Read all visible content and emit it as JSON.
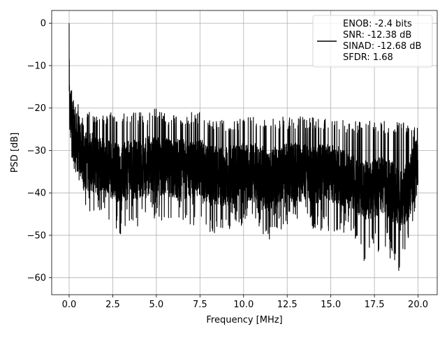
{
  "chart_data": {
    "type": "line",
    "title": "",
    "xlabel": "Frequency [MHz]",
    "ylabel": "PSD [dB]",
    "xlim": [
      -1,
      21.1
    ],
    "ylim": [
      -64,
      3
    ],
    "xticks": [
      0.0,
      2.5,
      5.0,
      7.5,
      10.0,
      12.5,
      15.0,
      17.5,
      20.0
    ],
    "xtick_labels": [
      "0.0",
      "2.5",
      "5.0",
      "7.5",
      "10.0",
      "12.5",
      "15.0",
      "17.5",
      "20.0"
    ],
    "yticks": [
      0,
      -10,
      -20,
      -30,
      -40,
      -50,
      -60
    ],
    "ytick_labels": [
      "0",
      "−10",
      "−20",
      "−30",
      "−40",
      "−50",
      "−60"
    ],
    "grid": true,
    "legend_position": "top-right",
    "legend_lines": [
      "ENOB: -2.4 bits",
      "SNR: -12.38 dB",
      "SINAD: -12.68 dB",
      "SFDR: 1.68"
    ],
    "series": [
      {
        "color": "#000000",
        "description": "dense noise-like PSD trace, peak at 0 dB near DC, mostly between -20 and -40 dB",
        "x": [
          0.0,
          0.02,
          0.05,
          0.1,
          0.15,
          0.2,
          0.3,
          0.5,
          0.7,
          1.0,
          1.5,
          2.0,
          2.5,
          3.0,
          3.5,
          4.0,
          4.5,
          5.0,
          5.5,
          6.0,
          6.5,
          7.0,
          7.5,
          8.0,
          9.0,
          10.0,
          11.0,
          11.4,
          12.0,
          13.0,
          14.0,
          15.0,
          16.0,
          16.9,
          17.5,
          18.0,
          18.5,
          19.0,
          19.5,
          20.0
        ],
        "y": [
          0,
          -10,
          -12,
          -14,
          -16,
          -17,
          -18,
          -19,
          -20,
          -21,
          -21,
          -21,
          -21,
          -21,
          -21,
          -21,
          -21,
          -20,
          -21,
          -21,
          -21,
          -21,
          -21,
          -22,
          -23,
          -22,
          -22,
          -22,
          -22,
          -22,
          -22,
          -22,
          -23,
          -23,
          -23,
          -23,
          -23,
          -23,
          -24,
          -24
        ],
        "min_y": [
          -22,
          -30,
          -31,
          -32,
          -33,
          -35,
          -37,
          -38,
          -40,
          -44,
          -45,
          -44,
          -48,
          -50,
          -48,
          -48,
          -46,
          -48,
          -47,
          -48,
          -47,
          -48,
          -47,
          -50,
          -49,
          -48,
          -49,
          -53,
          -49,
          -48,
          -49,
          -49,
          -50,
          -56,
          -55,
          -53,
          -56,
          -61,
          -54,
          -38
        ]
      }
    ]
  }
}
